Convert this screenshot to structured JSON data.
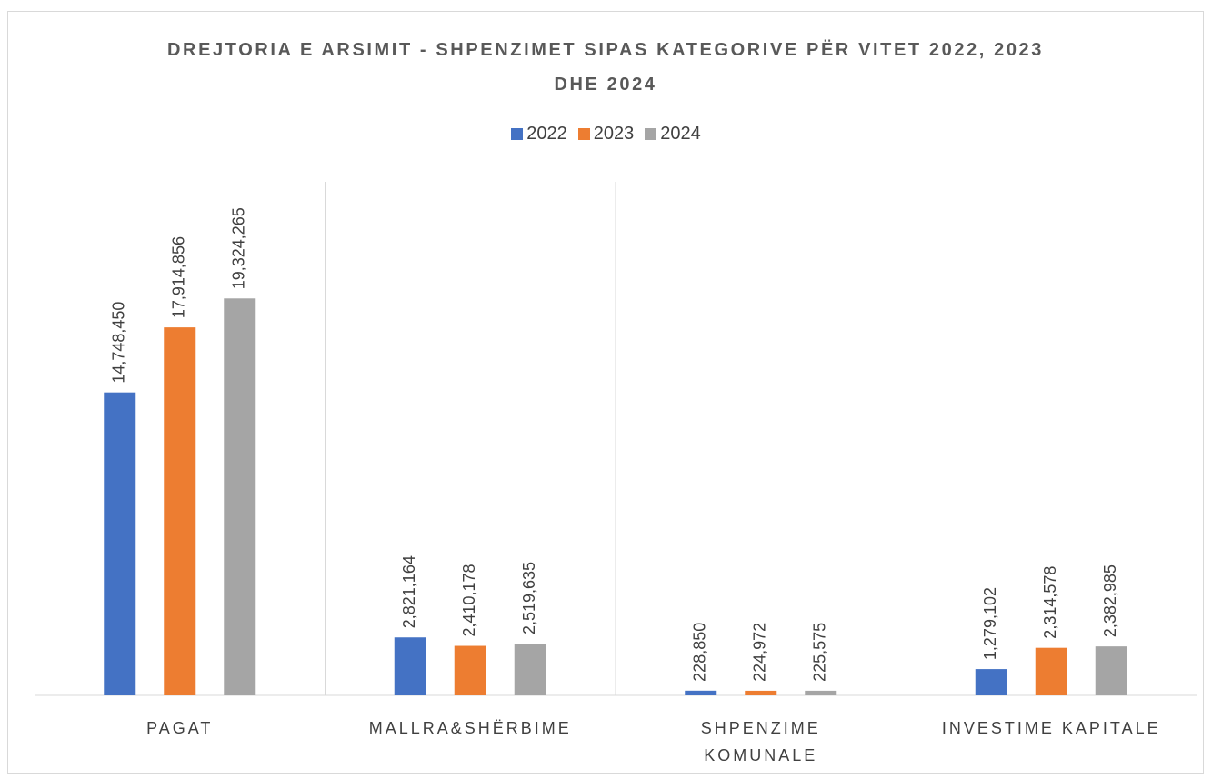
{
  "chart_data": {
    "type": "bar",
    "title": "DREJTORIA E ARSIMIT - SHPENZIMET SIPAS KATEGORIVE PËR VITET 2022, 2023 DHE 2024",
    "categories": [
      "PAGAT",
      "MALLRA&SHËRBIME",
      "SHPENZIME\nKOMUNALE",
      "INVESTIME KAPITALE"
    ],
    "series": [
      {
        "name": "2022",
        "color": "#4472c4",
        "values": [
          14748450,
          2821164,
          228850,
          1279102
        ],
        "value_labels": [
          "14,748,450",
          "2,821,164",
          "228,850",
          "1,279,102"
        ]
      },
      {
        "name": "2023",
        "color": "#ed7d31",
        "values": [
          17914856,
          2410178,
          224972,
          2314578
        ],
        "value_labels": [
          "17,914,856",
          "2,410,178",
          "224,972",
          "2,314,578"
        ]
      },
      {
        "name": "2024",
        "color": "#a5a5a5",
        "values": [
          19324265,
          2519635,
          225575,
          2382985
        ],
        "value_labels": [
          "19,324,265",
          "2,519,635",
          "225,575",
          "2,382,985"
        ]
      }
    ],
    "ylim": [
      0,
      25000000
    ],
    "legend": "top"
  }
}
